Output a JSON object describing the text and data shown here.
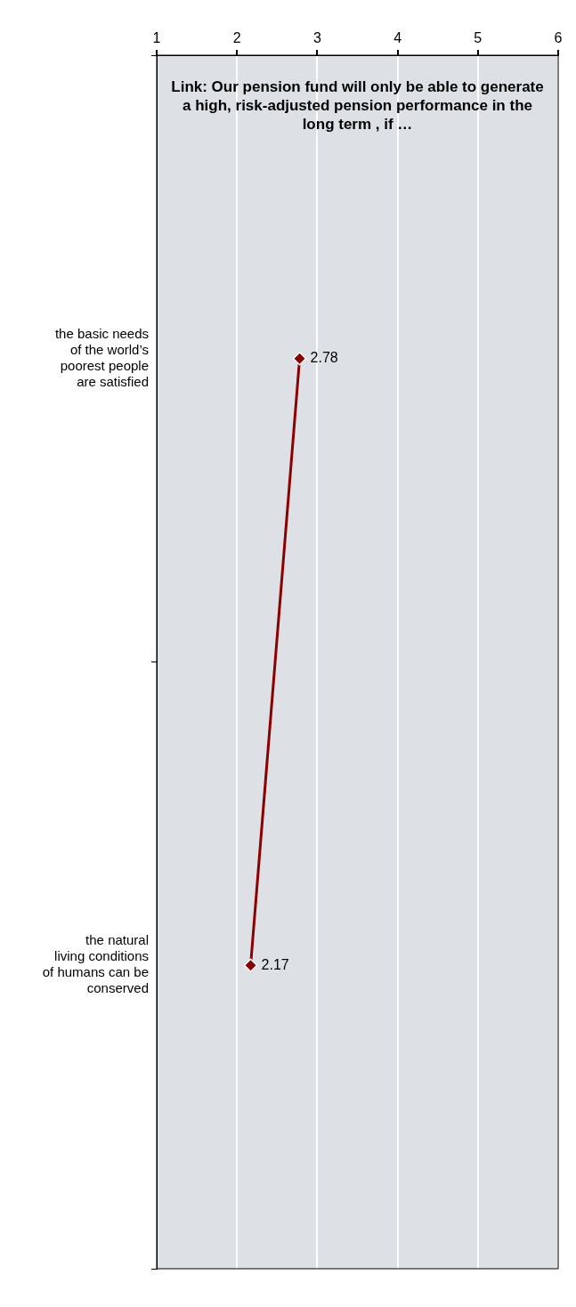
{
  "chart_data": {
    "type": "line",
    "orientation": "horizontal",
    "title": "Link: Our pension fund will only be able to generate a high, risk-adjusted pension performance in the long term , if …",
    "categories": [
      "the basic needs of the world’s poorest people are satisfied",
      "the natural living conditions of humans can be conserved"
    ],
    "series": [
      {
        "color": "#8b0000",
        "values": [
          2.78,
          2.17
        ]
      }
    ],
    "xlim": [
      1,
      6
    ],
    "xticks": [
      1,
      2,
      3,
      4,
      5,
      6
    ],
    "grid": "x",
    "legend": false,
    "marker": "diamond",
    "line_style": "solid",
    "data_labels": true
  }
}
